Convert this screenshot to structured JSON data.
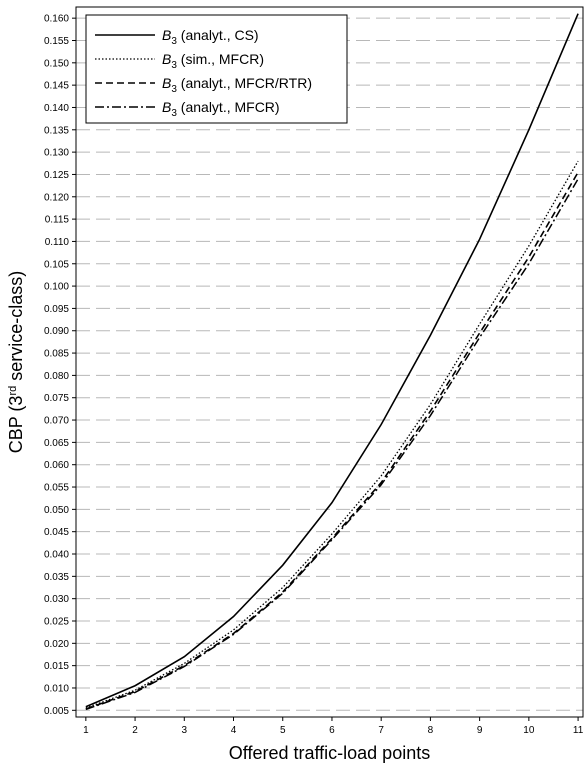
{
  "chart_data": {
    "type": "line",
    "title": "",
    "xlabel": "Offered traffic-load points",
    "ylabel_parts": [
      "CBP (3",
      "rd",
      " service-class)"
    ],
    "x": [
      1,
      2,
      3,
      4,
      5,
      6,
      7,
      8,
      9,
      10,
      11
    ],
    "x_tick_labels": [
      "1",
      "2",
      "3",
      "4",
      "5",
      "6",
      "7",
      "8",
      "9",
      "10",
      "11"
    ],
    "xlim": [
      0.8,
      11.1
    ],
    "ylim": [
      0.0035,
      0.1625
    ],
    "y_ticks": [
      0.005,
      0.01,
      0.015,
      0.02,
      0.025,
      0.03,
      0.035,
      0.04,
      0.045,
      0.05,
      0.055,
      0.06,
      0.065,
      0.07,
      0.075,
      0.08,
      0.085,
      0.09,
      0.095,
      0.1,
      0.105,
      0.11,
      0.115,
      0.12,
      0.125,
      0.13,
      0.135,
      0.14,
      0.145,
      0.15,
      0.155,
      0.16
    ],
    "y_tick_labels": [
      "0.005",
      "0.010",
      "0.015",
      "0.020",
      "0.025",
      "0.030",
      "0.035",
      "0.040",
      "0.045",
      "0.050",
      "0.055",
      "0.060",
      "0.065",
      "0.070",
      "0.075",
      "0.080",
      "0.085",
      "0.090",
      "0.095",
      "0.100",
      "0.105",
      "0.110",
      "0.115",
      "0.120",
      "0.125",
      "0.130",
      "0.135",
      "0.140",
      "0.145",
      "0.150",
      "0.155",
      "0.160"
    ],
    "grid": "horizontal dashed",
    "legend_position": "top-left",
    "series": [
      {
        "name_main": "B",
        "name_sub": "3",
        "name_rest": " (analyt., CS)",
        "style": "solid",
        "values": [
          0.0058,
          0.0105,
          0.017,
          0.026,
          0.0375,
          0.0515,
          0.069,
          0.089,
          0.1105,
          0.135,
          0.161
        ]
      },
      {
        "name_main": "B",
        "name_sub": "3",
        "name_rest": " (sim., MFCR)",
        "style": "dotted",
        "values": [
          0.0055,
          0.0095,
          0.0155,
          0.023,
          0.0325,
          0.0445,
          0.0575,
          0.0735,
          0.0915,
          0.109,
          0.128
        ]
      },
      {
        "name_main": "B",
        "name_sub": "3",
        "name_rest": " (analyt., MFCR/RTR)",
        "style": "dashed",
        "values": [
          0.0053,
          0.0092,
          0.015,
          0.0222,
          0.0315,
          0.0435,
          0.056,
          0.072,
          0.0895,
          0.1065,
          0.1255
        ]
      },
      {
        "name_main": "B",
        "name_sub": "3",
        "name_rest": " (analyt., MFCR)",
        "style": "dashdot",
        "values": [
          0.0052,
          0.009,
          0.0148,
          0.022,
          0.0312,
          0.0432,
          0.0555,
          0.071,
          0.0885,
          0.105,
          0.124
        ]
      }
    ]
  }
}
